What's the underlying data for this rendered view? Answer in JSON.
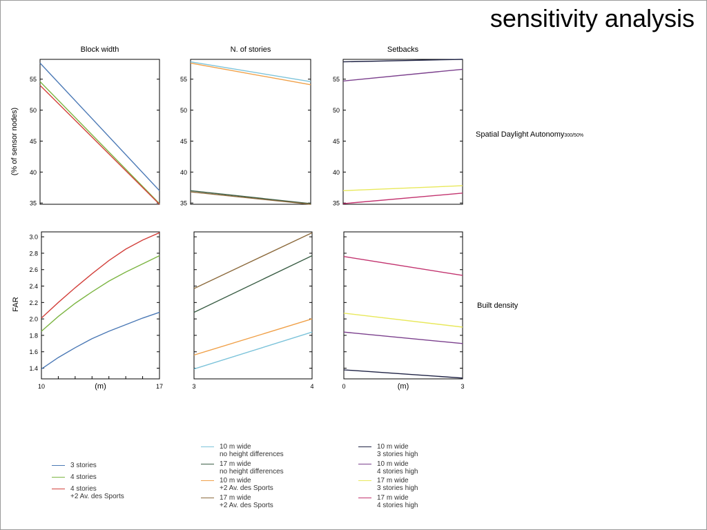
{
  "page": {
    "title": "sensitivity analysis"
  },
  "row_labels": {
    "sda_main": "Spatial Daylight Autonomy",
    "sda_sub": "300/50%",
    "density": "Built density"
  },
  "y_labels": {
    "sda": "(% of sensor nodes)",
    "far": "FAR"
  },
  "legends": {
    "block_width": [
      {
        "lines": [
          "3 stories"
        ],
        "color": "#4a78b5"
      },
      {
        "lines": [
          "4 stories"
        ],
        "color": "#7cb542"
      },
      {
        "lines": [
          "4 stories",
          "+2 Av. des Sports"
        ],
        "color": "#d2403b"
      }
    ],
    "stories": [
      {
        "lines": [
          "10 m wide",
          "no height differences"
        ],
        "color": "#7cc3da"
      },
      {
        "lines": [
          "17 m wide",
          "no height differences"
        ],
        "color": "#3a5e45"
      },
      {
        "lines": [
          "10 m wide",
          "+2 Av. des Sports"
        ],
        "color": "#f0a048"
      },
      {
        "lines": [
          "17 m wide",
          "+2 Av. des Sports"
        ],
        "color": "#8c6a3c"
      }
    ],
    "setbacks": [
      {
        "lines": [
          "10 m wide",
          "3 stories high"
        ],
        "color": "#1e2244"
      },
      {
        "lines": [
          "10 m wide",
          "4 stories high"
        ],
        "color": "#7a3e8c"
      },
      {
        "lines": [
          "17 m wide",
          "3 stories high"
        ],
        "color": "#e8e85a"
      },
      {
        "lines": [
          "17 m wide",
          "4 stories high"
        ],
        "color": "#c2326e"
      }
    ]
  },
  "chart_data": [
    {
      "id": "sda-block",
      "type": "line",
      "title": "Block width",
      "ylabel": "(% of sensor nodes)",
      "x": [
        10,
        17
      ],
      "xlim": [
        10,
        17
      ],
      "ylim": [
        34.8,
        58.2
      ],
      "yticks": [
        35,
        40,
        45,
        50,
        55
      ],
      "series": [
        {
          "name": "3 stories",
          "color": "#4a78b5",
          "values": [
            57.6,
            37.0
          ]
        },
        {
          "name": "4 stories",
          "color": "#7cb542",
          "values": [
            54.6,
            34.9
          ]
        },
        {
          "name": "4 stories +2 Av. des Sports",
          "color": "#d2403b",
          "values": [
            54.0,
            34.8
          ]
        }
      ]
    },
    {
      "id": "sda-stories",
      "type": "line",
      "title": "N. of stories",
      "x": [
        3,
        4
      ],
      "xlim": [
        3,
        4
      ],
      "ylim": [
        34.8,
        58.2
      ],
      "yticks": [
        35,
        40,
        45,
        50,
        55
      ],
      "series": [
        {
          "name": "10 m wide no height differences",
          "color": "#7cc3da",
          "values": [
            57.8,
            54.6
          ]
        },
        {
          "name": "10 m wide +2 Av. des Sports",
          "color": "#f0a048",
          "values": [
            57.6,
            54.1
          ]
        },
        {
          "name": "17 m wide no height differences",
          "color": "#3a5e45",
          "values": [
            37.0,
            34.9
          ]
        },
        {
          "name": "17 m wide +2 Av. des Sports",
          "color": "#8c6a3c",
          "values": [
            36.8,
            34.8
          ]
        }
      ]
    },
    {
      "id": "sda-setbacks",
      "type": "line",
      "title": "Setbacks",
      "x": [
        0,
        3
      ],
      "xlim": [
        0,
        3
      ],
      "ylim": [
        34.8,
        58.2
      ],
      "yticks": [
        35,
        40,
        45,
        50,
        55
      ],
      "series": [
        {
          "name": "10 m wide 3 stories high",
          "color": "#1e2244",
          "values": [
            57.8,
            58.2
          ]
        },
        {
          "name": "10 m wide 4 stories high",
          "color": "#7a3e8c",
          "values": [
            54.7,
            56.6
          ]
        },
        {
          "name": "17 m wide 3 stories high",
          "color": "#e8e85a",
          "values": [
            37.0,
            37.8
          ]
        },
        {
          "name": "17 m wide 4 stories high",
          "color": "#c2326e",
          "values": [
            34.9,
            36.6
          ]
        }
      ]
    },
    {
      "id": "far-block",
      "type": "line",
      "ylabel": "FAR",
      "xlabel": "(m)",
      "x": [
        10,
        11,
        12,
        13,
        14,
        15,
        16,
        17
      ],
      "xlim": [
        10,
        17
      ],
      "ylim": [
        1.27,
        3.06
      ],
      "yticks": [
        1.4,
        1.6,
        1.8,
        2.0,
        2.2,
        2.4,
        2.6,
        2.8,
        3.0
      ],
      "xticklabels": [
        {
          "v": 10,
          "t": "10"
        },
        {
          "v": 17,
          "t": "17"
        }
      ],
      "series": [
        {
          "name": "3 stories",
          "color": "#4a78b5",
          "values": [
            1.39,
            1.53,
            1.65,
            1.76,
            1.85,
            1.93,
            2.01,
            2.08
          ]
        },
        {
          "name": "4 stories",
          "color": "#7cb542",
          "values": [
            1.85,
            2.03,
            2.19,
            2.33,
            2.46,
            2.57,
            2.67,
            2.77
          ]
        },
        {
          "name": "4 stories +2 Av. des Sports",
          "color": "#d2403b",
          "values": [
            2.01,
            2.2,
            2.38,
            2.55,
            2.71,
            2.85,
            2.96,
            3.05
          ]
        }
      ]
    },
    {
      "id": "far-stories",
      "type": "line",
      "x": [
        3,
        4
      ],
      "xlim": [
        3,
        4
      ],
      "ylim": [
        1.27,
        3.06
      ],
      "xticklabels": [
        {
          "v": 3,
          "t": "3"
        },
        {
          "v": 4,
          "t": "4"
        }
      ],
      "series": [
        {
          "name": "10 m wide no height differences",
          "color": "#7cc3da",
          "values": [
            1.39,
            1.84
          ]
        },
        {
          "name": "10 m wide +2 Av. des Sports",
          "color": "#f0a048",
          "values": [
            1.56,
            2.0
          ]
        },
        {
          "name": "17 m wide no height differences",
          "color": "#3a5e45",
          "values": [
            2.08,
            2.77
          ]
        },
        {
          "name": "17 m wide +2 Av. des Sports",
          "color": "#8c6a3c",
          "values": [
            2.37,
            3.05
          ]
        }
      ]
    },
    {
      "id": "far-setbacks",
      "type": "line",
      "xlabel": "(m)",
      "x": [
        0,
        3
      ],
      "xlim": [
        0,
        3
      ],
      "ylim": [
        1.27,
        3.06
      ],
      "xticklabels": [
        {
          "v": 0,
          "t": "0"
        },
        {
          "v": 3,
          "t": "3"
        }
      ],
      "series": [
        {
          "name": "10 m wide 3 stories high",
          "color": "#1e2244",
          "values": [
            1.38,
            1.28
          ]
        },
        {
          "name": "10 m wide 4 stories high",
          "color": "#7a3e8c",
          "values": [
            1.84,
            1.7
          ]
        },
        {
          "name": "17 m wide 3 stories high",
          "color": "#e8e85a",
          "values": [
            2.07,
            1.9
          ]
        },
        {
          "name": "17 m wide 4 stories high",
          "color": "#c2326e",
          "values": [
            2.76,
            2.53
          ]
        }
      ]
    }
  ]
}
